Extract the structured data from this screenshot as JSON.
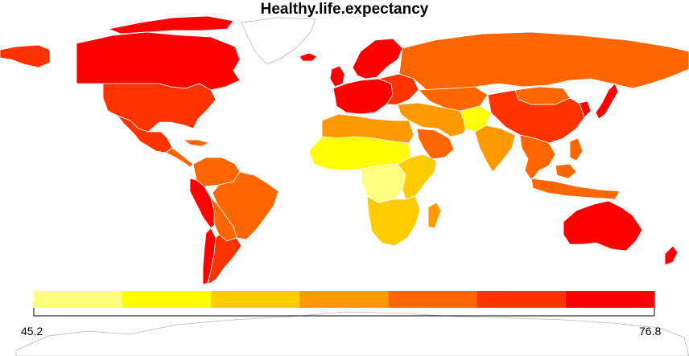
{
  "map": {
    "title": "Healthy.life.expectancy",
    "legend": {
      "min_label": "45.2",
      "max_label": "76.8",
      "colors": [
        "#ffff80",
        "#ffff00",
        "#ffcc00",
        "#ff9900",
        "#ff6600",
        "#ff3300",
        "#ff0000"
      ]
    },
    "no_data_fill": "#ffffff",
    "border_color": "#b9b9b9",
    "regions": [
      {
        "name": "canada",
        "bin": 6
      },
      {
        "name": "greenland",
        "bin": null
      },
      {
        "name": "usa",
        "bin": 5
      },
      {
        "name": "mexico",
        "bin": 5
      },
      {
        "name": "central-america",
        "bin": 4
      },
      {
        "name": "colombia-venezuela",
        "bin": 4
      },
      {
        "name": "peru-ecuador",
        "bin": 6
      },
      {
        "name": "brazil",
        "bin": 4
      },
      {
        "name": "bolivia-paraguay",
        "bin": 4
      },
      {
        "name": "chile",
        "bin": 6
      },
      {
        "name": "argentina",
        "bin": 5
      },
      {
        "name": "western-europe",
        "bin": 6
      },
      {
        "name": "iceland",
        "bin": 6
      },
      {
        "name": "uk-ireland",
        "bin": 6
      },
      {
        "name": "scandinavia",
        "bin": 6
      },
      {
        "name": "eastern-europe",
        "bin": 5
      },
      {
        "name": "russia",
        "bin": 4
      },
      {
        "name": "kazakhstan",
        "bin": 4
      },
      {
        "name": "north-africa",
        "bin": 3
      },
      {
        "name": "sahel-west-africa",
        "bin": 1
      },
      {
        "name": "central-africa",
        "bin": 0
      },
      {
        "name": "east-africa",
        "bin": 2
      },
      {
        "name": "southern-africa",
        "bin": 2
      },
      {
        "name": "madagascar",
        "bin": 3
      },
      {
        "name": "middle-east",
        "bin": 3
      },
      {
        "name": "arabian-peninsula",
        "bin": 4
      },
      {
        "name": "afghanistan",
        "bin": 1
      },
      {
        "name": "india",
        "bin": 3
      },
      {
        "name": "mongolia",
        "bin": 4
      },
      {
        "name": "china",
        "bin": 5
      },
      {
        "name": "southeast-asia",
        "bin": 4
      },
      {
        "name": "indonesia",
        "bin": 4
      },
      {
        "name": "japan",
        "bin": 6
      },
      {
        "name": "korea",
        "bin": 6
      },
      {
        "name": "australia",
        "bin": 6
      },
      {
        "name": "new-zealand",
        "bin": 6
      },
      {
        "name": "antarctica",
        "bin": null
      }
    ]
  }
}
